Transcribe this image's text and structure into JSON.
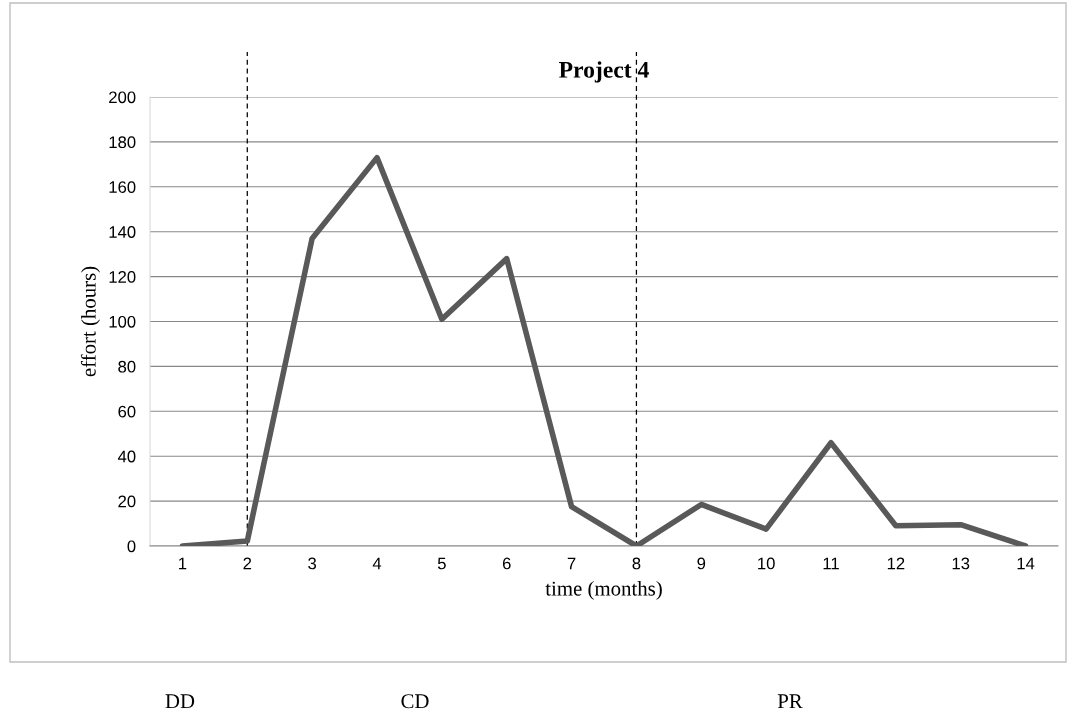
{
  "chart_data": {
    "type": "line",
    "title": "Project 4",
    "xlabel": "time (months)",
    "ylabel": "effort (hours)",
    "x": [
      1,
      2,
      3,
      4,
      5,
      6,
      7,
      8,
      9,
      10,
      11,
      12,
      13,
      14
    ],
    "series": [
      {
        "color": "#595959",
        "values": [
          0,
          2.2,
          137,
          173,
          101,
          128,
          17.5,
          0,
          18.5,
          7.5,
          46,
          9,
          9.5,
          0
        ]
      }
    ],
    "xlim": [
      0.5,
      14.5
    ],
    "xticks": [
      1,
      2,
      3,
      4,
      5,
      6,
      7,
      8,
      9,
      10,
      11,
      12,
      13,
      14
    ],
    "ylim": [
      0,
      200
    ],
    "yticks": [
      0,
      20,
      40,
      60,
      80,
      100,
      120,
      140,
      160,
      180,
      200
    ],
    "grid": "y",
    "marker": "none",
    "line_style": "solid",
    "legend": false,
    "ref_lines": [
      {
        "axis": "x",
        "value": 2,
        "color": "#000000",
        "line_style": "dashed"
      },
      {
        "axis": "x",
        "value": 8,
        "color": "#000000",
        "line_style": "dashed"
      }
    ],
    "annotations": [
      "DD",
      "CD",
      "PR"
    ]
  }
}
